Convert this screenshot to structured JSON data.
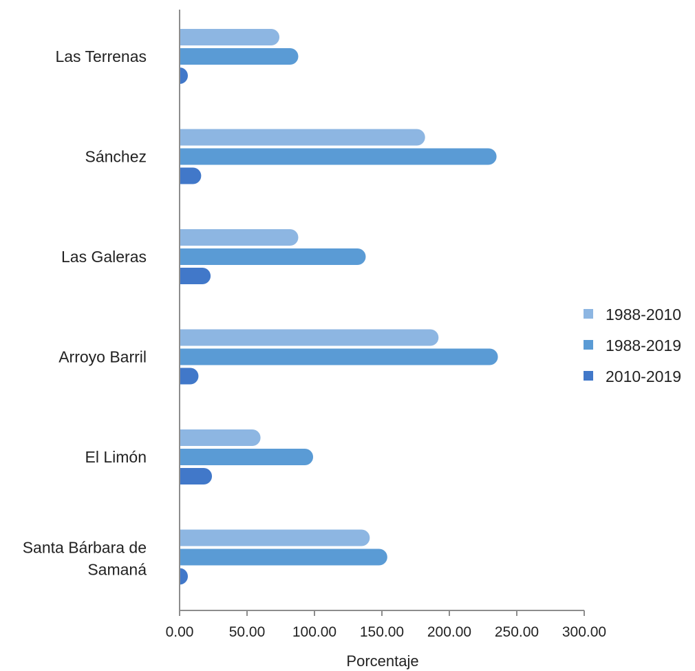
{
  "chart_data": {
    "type": "bar",
    "orientation": "horizontal",
    "categories": [
      "Las Terrenas",
      "Sánchez",
      "Las Galeras",
      "Arroyo Barril",
      "El Limón",
      "Santa Bárbara de Samaná"
    ],
    "series": [
      {
        "name": "1988-2010",
        "color": "#8db6e2",
        "values": [
          74,
          182,
          88,
          192,
          60,
          141
        ]
      },
      {
        "name": "1988-2019",
        "color": "#5a9bd5",
        "values": [
          88,
          235,
          138,
          236,
          99,
          154
        ]
      },
      {
        "name": "2010-2019",
        "color": "#4178c9",
        "values": [
          6,
          16,
          23,
          14,
          24,
          5
        ]
      }
    ],
    "xlabel": "Porcentaje",
    "ylabel": "",
    "xlim": [
      0,
      300
    ],
    "xticks": [
      "0.00",
      "50.00",
      "100.00",
      "150.00",
      "200.00",
      "250.00",
      "300.00"
    ],
    "grid": false,
    "legend_position": "right"
  }
}
